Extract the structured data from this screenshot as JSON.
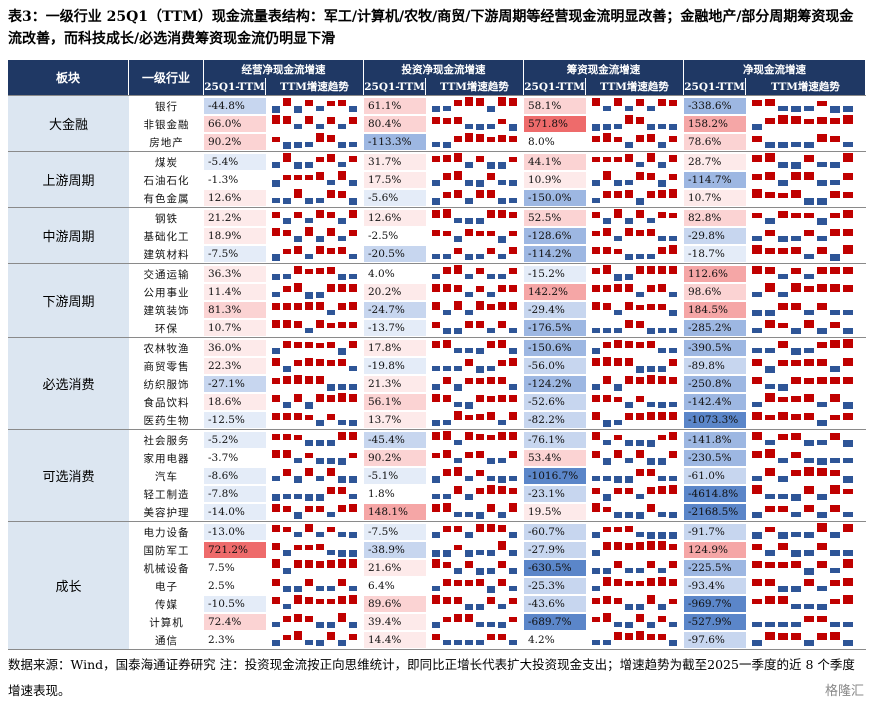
{
  "title": "表3：一级行业 25Q1（TTM）现金流量表结构：军工/计算机/农牧/商贸/下游周期等经营现金流明显改善；金融地产/部分周期筹资现金流改善，而科技成长/必选消费筹资现金流仍明显下滑",
  "header": {
    "sector": "板块",
    "industry": "一级行业",
    "groups": [
      "经营净现金流增速",
      "投资净现金流增速",
      "筹资现金流增速",
      "净现金流增速"
    ],
    "sub_value": "25Q1-TTM",
    "sub_trend": "TTM增速趋势"
  },
  "sectors": [
    {
      "name": "大金融",
      "rows": [
        {
          "industry": "银行",
          "vals": [
            "-44.8%",
            "61.1%",
            "58.1%",
            "-338.6%"
          ]
        },
        {
          "industry": "非银金融",
          "vals": [
            "66.0%",
            "80.4%",
            "571.8%",
            "158.2%"
          ]
        },
        {
          "industry": "房地产",
          "vals": [
            "90.2%",
            "-113.3%",
            "8.0%",
            "78.6%"
          ]
        }
      ]
    },
    {
      "name": "上游周期",
      "rows": [
        {
          "industry": "煤炭",
          "vals": [
            "-5.4%",
            "31.7%",
            "44.1%",
            "28.7%"
          ]
        },
        {
          "industry": "石油石化",
          "vals": [
            "-1.3%",
            "17.5%",
            "10.9%",
            "-114.7%"
          ]
        },
        {
          "industry": "有色金属",
          "vals": [
            "12.6%",
            "-5.6%",
            "-150.0%",
            "10.7%"
          ]
        }
      ]
    },
    {
      "name": "中游周期",
      "rows": [
        {
          "industry": "钢铁",
          "vals": [
            "21.2%",
            "12.6%",
            "52.5%",
            "82.8%"
          ]
        },
        {
          "industry": "基础化工",
          "vals": [
            "18.9%",
            "-2.5%",
            "-128.6%",
            "-29.8%"
          ]
        },
        {
          "industry": "建筑材料",
          "vals": [
            "-7.5%",
            "-20.5%",
            "-114.2%",
            "-18.7%"
          ]
        }
      ]
    },
    {
      "name": "下游周期",
      "rows": [
        {
          "industry": "交通运输",
          "vals": [
            "36.3%",
            "4.0%",
            "-15.2%",
            "112.6%"
          ]
        },
        {
          "industry": "公用事业",
          "vals": [
            "11.4%",
            "20.2%",
            "142.2%",
            "98.6%"
          ]
        },
        {
          "industry": "建筑装饰",
          "vals": [
            "81.3%",
            "-24.7%",
            "-29.4%",
            "184.5%"
          ]
        },
        {
          "industry": "环保",
          "vals": [
            "10.7%",
            "-13.7%",
            "-176.5%",
            "-285.2%"
          ]
        }
      ]
    },
    {
      "name": "必选消费",
      "rows": [
        {
          "industry": "农林牧渔",
          "vals": [
            "36.0%",
            "17.8%",
            "-150.6%",
            "-390.5%"
          ]
        },
        {
          "industry": "商贸零售",
          "vals": [
            "22.3%",
            "-19.8%",
            "-56.0%",
            "-89.8%"
          ]
        },
        {
          "industry": "纺织服饰",
          "vals": [
            "-27.1%",
            "21.3%",
            "-124.2%",
            "-250.8%"
          ]
        },
        {
          "industry": "食品饮料",
          "vals": [
            "18.6%",
            "56.1%",
            "-52.6%",
            "-142.4%"
          ]
        },
        {
          "industry": "医药生物",
          "vals": [
            "-12.5%",
            "13.7%",
            "-82.2%",
            "-1073.3%"
          ]
        }
      ]
    },
    {
      "name": "可选消费",
      "rows": [
        {
          "industry": "社会服务",
          "vals": [
            "-5.2%",
            "-45.4%",
            "-76.1%",
            "-141.8%"
          ]
        },
        {
          "industry": "家用电器",
          "vals": [
            "-3.7%",
            "90.2%",
            "53.4%",
            "-230.5%"
          ]
        },
        {
          "industry": "汽车",
          "vals": [
            "-8.6%",
            "-5.1%",
            "-1016.7%",
            "-61.0%"
          ]
        },
        {
          "industry": "轻工制造",
          "vals": [
            "-7.8%",
            "1.8%",
            "-23.1%",
            "-4614.8%"
          ]
        },
        {
          "industry": "美容护理",
          "vals": [
            "-14.0%",
            "148.1%",
            "19.5%",
            "-2168.5%"
          ]
        }
      ]
    },
    {
      "name": "成长",
      "rows": [
        {
          "industry": "电力设备",
          "vals": [
            "-13.0%",
            "-7.5%",
            "-60.7%",
            "-91.7%"
          ]
        },
        {
          "industry": "国防军工",
          "vals": [
            "721.2%",
            "-38.9%",
            "-27.9%",
            "124.9%"
          ]
        },
        {
          "industry": "机械设备",
          "vals": [
            "7.5%",
            "21.6%",
            "-630.5%",
            "-225.5%"
          ]
        },
        {
          "industry": "电子",
          "vals": [
            "2.5%",
            "6.4%",
            "-25.3%",
            "-93.4%"
          ]
        },
        {
          "industry": "传媒",
          "vals": [
            "-10.5%",
            "89.6%",
            "-43.6%",
            "-969.7%"
          ]
        },
        {
          "industry": "计算机",
          "vals": [
            "72.4%",
            "39.4%",
            "-689.7%",
            "-527.9%"
          ]
        },
        {
          "industry": "通信",
          "vals": [
            "2.3%",
            "14.4%",
            "4.2%",
            "-97.6%"
          ]
        }
      ]
    }
  ],
  "footer": "数据来源：Wind，国泰海通证券研究  注：投资现金流按正向思维统计，即同比正增长代表扩大投资现金支出；增速趋势为截至2025一季度的近 8 个季度增速表现。",
  "watermark": "格隆汇",
  "colors": {
    "header": "#1f3864",
    "sector_bg": "#dce6f1",
    "positive": "#c00000",
    "negative": "#2e5597",
    "pos_strong": "#f08080",
    "neg_strong": "#7e9fd6"
  }
}
